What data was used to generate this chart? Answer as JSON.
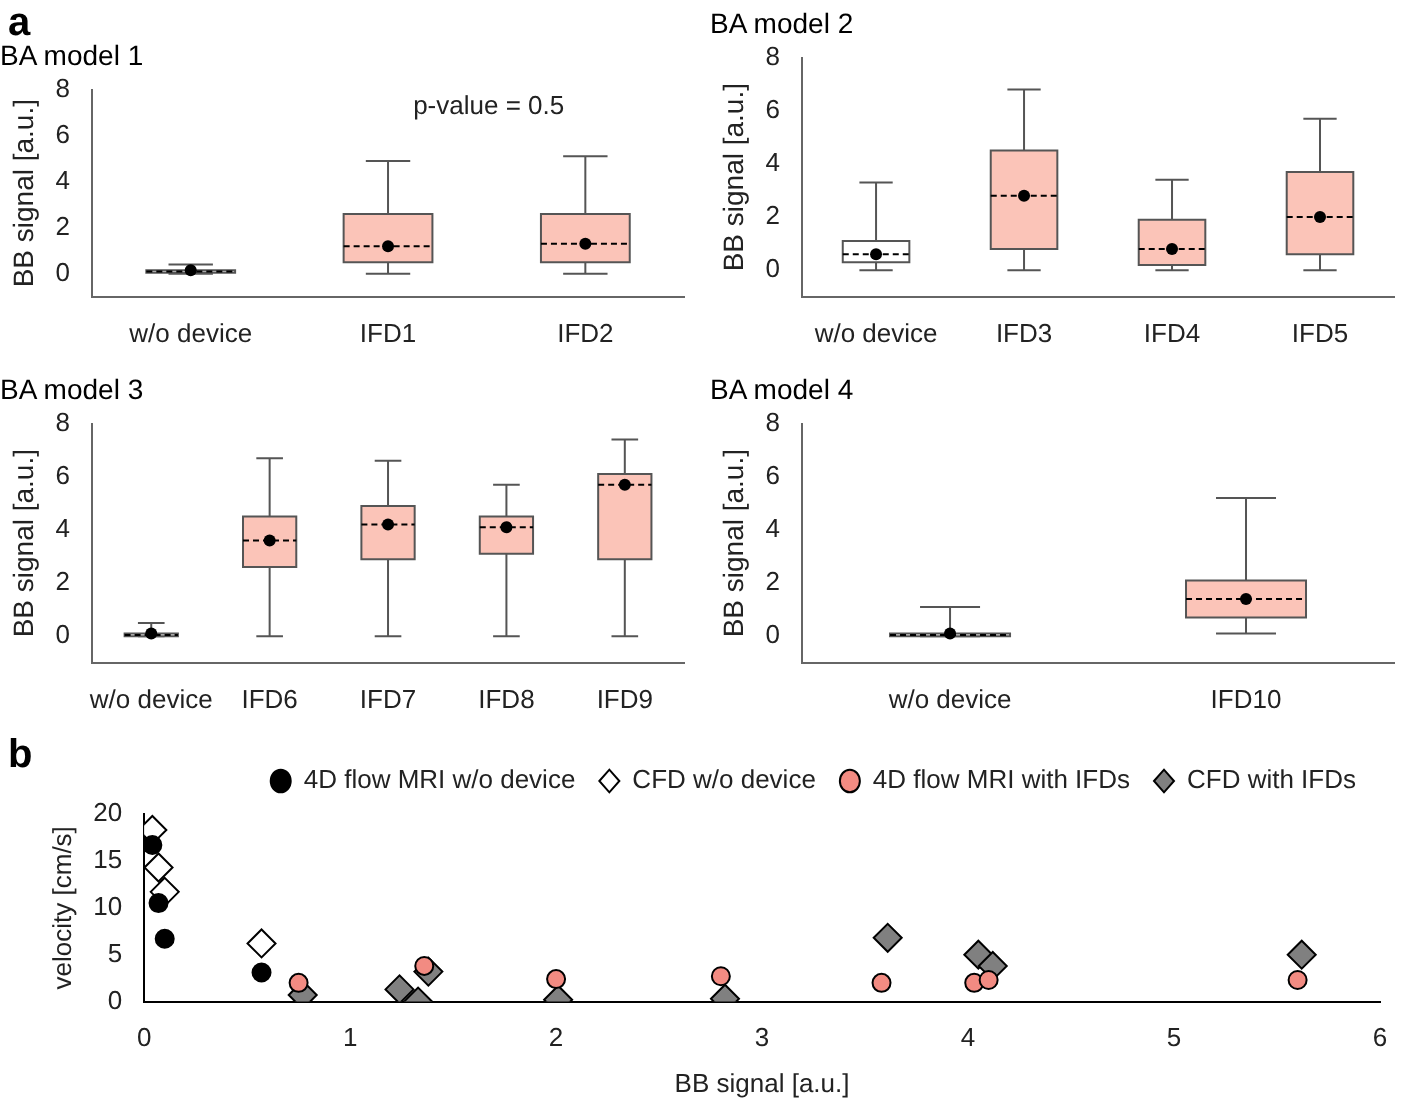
{
  "chart_data": [
    {
      "type": "box",
      "title": "BA model 1",
      "ylabel": "BB signal [a.u.]",
      "categories": [
        "w/o device",
        "IFD1",
        "IFD2"
      ],
      "colors": [
        "#ffffff",
        "#fbc4b8",
        "#fbc4b8"
      ],
      "ylim": [
        -1,
        8
      ],
      "yticks": [
        0,
        2,
        4,
        6,
        8
      ],
      "grid": false,
      "annotations": [
        "a",
        "p-value = 0.5"
      ],
      "boxes": [
        {
          "low": 0,
          "q1": 0.05,
          "median": 0.1,
          "q3": 0.15,
          "high": 0.4,
          "mean": 0.15
        },
        {
          "low": 0,
          "q1": 0.5,
          "median": 1.2,
          "q3": 2.6,
          "high": 4.9,
          "mean": 1.2
        },
        {
          "low": 0,
          "q1": 0.5,
          "median": 1.3,
          "q3": 2.6,
          "high": 5.1,
          "mean": 1.3
        }
      ]
    },
    {
      "type": "box",
      "title": "BA model 2",
      "ylabel": "BB signal [a.u.]",
      "categories": [
        "w/o device",
        "IFD3",
        "IFD4",
        "IFD5"
      ],
      "colors": [
        "#ffffff",
        "#fbc4b8",
        "#fbc4b8",
        "#fbc4b8"
      ],
      "ylim": [
        -1,
        8
      ],
      "yticks": [
        0,
        2,
        4,
        6,
        8
      ],
      "grid": false,
      "boxes": [
        {
          "low": 0,
          "q1": 0.3,
          "median": 0.6,
          "q3": 1.1,
          "high": 3.3,
          "mean": 0.6
        },
        {
          "low": 0,
          "q1": 0.8,
          "median": 2.8,
          "q3": 4.5,
          "high": 6.8,
          "mean": 2.8
        },
        {
          "low": 0,
          "q1": 0.2,
          "median": 0.8,
          "q3": 1.9,
          "high": 3.4,
          "mean": 0.8
        },
        {
          "low": 0,
          "q1": 0.6,
          "median": 2,
          "q3": 3.7,
          "high": 5.7,
          "mean": 2
        }
      ]
    },
    {
      "type": "box",
      "title": "BA model 3",
      "ylabel": "BB signal [a.u.]",
      "categories": [
        "w/o device",
        "IFD6",
        "IFD7",
        "IFD8",
        "IFD9"
      ],
      "colors": [
        "#ffffff",
        "#fbc4b8",
        "#fbc4b8",
        "#fbc4b8",
        "#fbc4b8"
      ],
      "ylim": [
        -1,
        8
      ],
      "yticks": [
        0,
        2,
        4,
        6,
        8
      ],
      "grid": false,
      "boxes": [
        {
          "low": 0,
          "q1": 0,
          "median": 0.05,
          "q3": 0.1,
          "high": 0.5,
          "mean": 0.1
        },
        {
          "low": 0,
          "q1": 2.6,
          "median": 3.6,
          "q3": 4.5,
          "high": 6.7,
          "mean": 3.6
        },
        {
          "low": 0,
          "q1": 2.9,
          "median": 4.2,
          "q3": 4.9,
          "high": 6.6,
          "mean": 4.2
        },
        {
          "low": 0,
          "q1": 3.1,
          "median": 4.1,
          "q3": 4.5,
          "high": 5.7,
          "mean": 4.1
        },
        {
          "low": 0,
          "q1": 2.9,
          "median": 5.7,
          "q3": 6.1,
          "high": 7.4,
          "mean": 5.7
        }
      ]
    },
    {
      "type": "box",
      "title": "BA model 4",
      "ylabel": "BB signal [a.u.]",
      "categories": [
        "w/o device",
        "IFD10"
      ],
      "colors": [
        "#ffffff",
        "#fbc4b8"
      ],
      "ylim": [
        -1,
        8
      ],
      "yticks": [
        0,
        2,
        4,
        6,
        8
      ],
      "grid": false,
      "boxes": [
        {
          "low": 0,
          "q1": 0,
          "median": 0.05,
          "q3": 0.1,
          "high": 1.1,
          "mean": 0.1
        },
        {
          "low": 0.1,
          "q1": 0.7,
          "median": 1.4,
          "q3": 2.1,
          "high": 5.2,
          "mean": 1.4
        }
      ]
    },
    {
      "type": "scatter",
      "xlabel": "BB signal [a.u.]",
      "ylabel": "velocity [cm/s]",
      "xlim": [
        0,
        6
      ],
      "xticks": [
        0,
        1,
        2,
        3,
        4,
        5,
        6
      ],
      "ylim": [
        0,
        20
      ],
      "yticks": [
        0,
        5,
        10,
        15,
        20
      ],
      "grid": false,
      "legend": "top right",
      "annotations": [
        "b"
      ],
      "series": [
        {
          "name": "4D flow MRI w/o device",
          "color": "#000000",
          "marker": "circle",
          "x": [
            0.04,
            0.07,
            0.1,
            0.57
          ],
          "values": [
            16.7,
            10.5,
            6.7,
            3.1
          ]
        },
        {
          "name": "CFD w/o device",
          "color": "#ffffff",
          "marker": "diamond",
          "x": [
            0.04,
            0.07,
            0.1,
            0.57
          ],
          "values": [
            18.3,
            14.3,
            11.7,
            6.2
          ]
        },
        {
          "name": "4D flow MRI with IFDs",
          "color": "#f28b82",
          "marker": "circle",
          "x": [
            0.75,
            1.36,
            2,
            2.8,
            3.58,
            4.03,
            4.1,
            5.6
          ],
          "values": [
            2,
            3.8,
            2.4,
            2.7,
            2,
            2,
            2.3,
            2.3
          ]
        },
        {
          "name": "CFD with IFDs",
          "color": "#808080",
          "marker": "diamond",
          "x": [
            0.77,
            1.24,
            1.33,
            1.38,
            2.01,
            2.82,
            3.61,
            4.05,
            4.12,
            5.62
          ],
          "values": [
            0.7,
            1.3,
            0,
            3.2,
            0.2,
            0.3,
            6.8,
            5,
            3.8,
            5
          ]
        }
      ]
    }
  ]
}
